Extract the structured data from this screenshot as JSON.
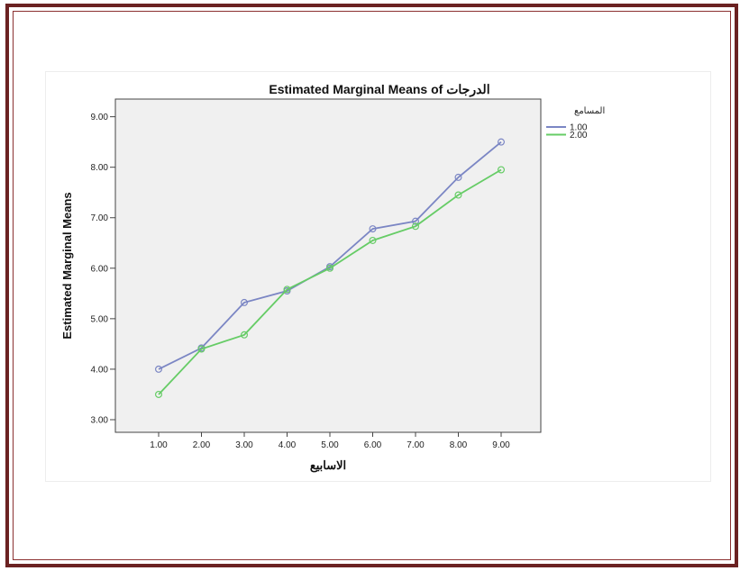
{
  "colors": {
    "frame": "#6b2222",
    "plot_background": "#f0f0f0",
    "series_1": "#7b86c4",
    "series_2": "#66cc66"
  },
  "chart_data": {
    "type": "line",
    "title": "Estimated Marginal Means of الدرجات",
    "xlabel": "الاسابيع",
    "ylabel": "Estimated Marginal Means",
    "legend_title": "المسامع",
    "legend_position": "right",
    "categories": [
      "1.00",
      "2.00",
      "3.00",
      "4.00",
      "5.00",
      "6.00",
      "7.00",
      "8.00",
      "9.00"
    ],
    "series": [
      {
        "name": "1.00",
        "values": [
          4.0,
          4.42,
          5.32,
          5.55,
          6.03,
          6.78,
          6.93,
          7.8,
          8.5
        ]
      },
      {
        "name": "2.00",
        "values": [
          3.5,
          4.4,
          4.68,
          5.58,
          6.0,
          6.55,
          6.83,
          7.45,
          7.95
        ]
      }
    ],
    "y_ticks": [
      "3.00",
      "4.00",
      "5.00",
      "6.00",
      "7.00",
      "8.00",
      "9.00"
    ],
    "ylim": [
      2.75,
      9.35
    ],
    "grid": false
  }
}
